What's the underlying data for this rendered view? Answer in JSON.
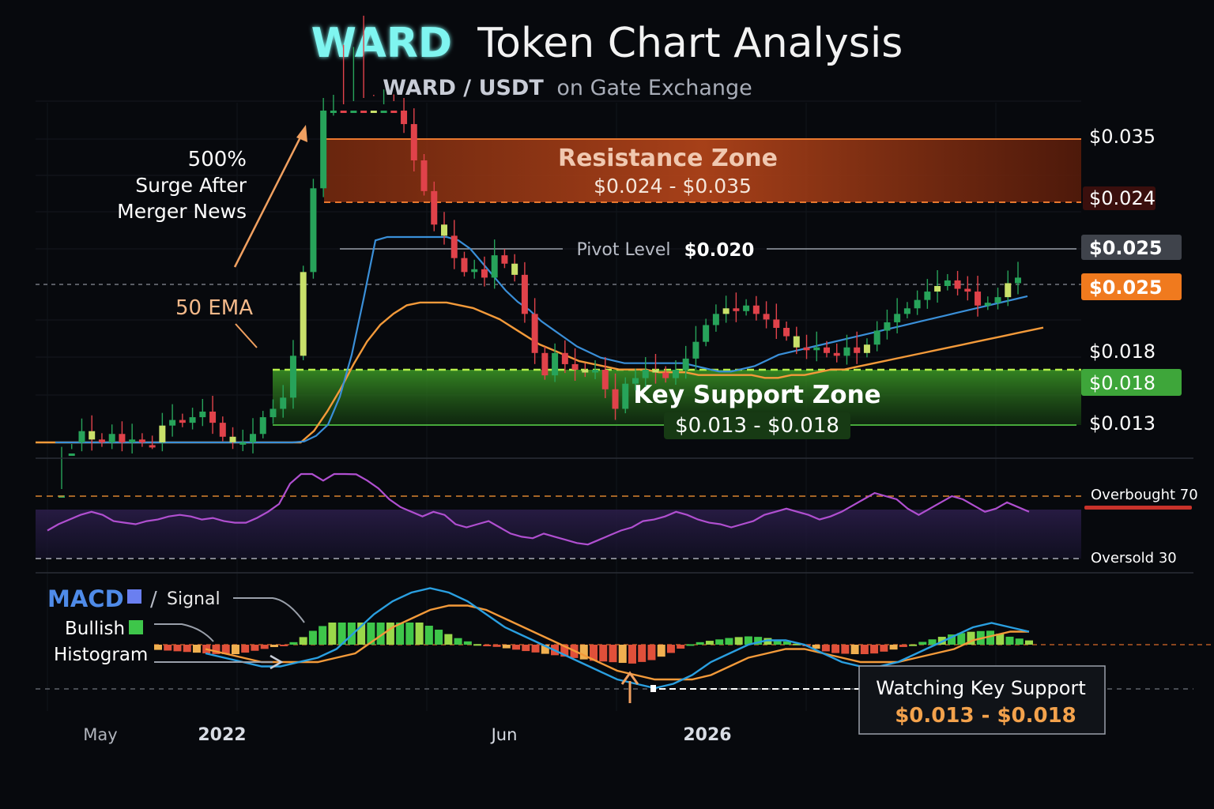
{
  "title": {
    "highlight": "WARD",
    "rest": "Token Chart Analysis"
  },
  "subtitle": {
    "pair": "WARD / USDT",
    "rest": "on Gate Exchange"
  },
  "colors": {
    "background": "#07090d",
    "bullish": "#27a35a",
    "bearish": "#e0424a",
    "ema_fast": "#3a8fd8",
    "ema_slow": "#f39a3a",
    "rsi": "#b04fd0",
    "macd": "#2a9fe0",
    "signal": "#f39a3a",
    "resistance": "#d9531e",
    "support": "#2f8f2a"
  },
  "resistance_zone": {
    "label": "Resistance Zone",
    "range": "$0.024 - $0.035"
  },
  "support_zone": {
    "label": "Key Support Zone",
    "range": "$0.013 - $0.018"
  },
  "pivot": {
    "label": "Pivot Level",
    "value": "$0.020"
  },
  "annotations": {
    "surge_line1": "500%",
    "surge_line2": "Surge After",
    "surge_line3": "Merger News",
    "ema50": "50 EMA"
  },
  "price_labels": {
    "p035": "$0.035",
    "p024": "$0.024",
    "p025a": "$0.025",
    "p025b": "$0.025",
    "p018a": "$0.018",
    "p018b": "$0.018",
    "p013": "$0.013"
  },
  "rsi_labels": {
    "overbought": "Overbought 70",
    "oversold": "Oversold 30"
  },
  "macd_legend": {
    "macd": "MACD",
    "slash": "/",
    "signal": "Signal",
    "bullish": "Bullish",
    "histogram": "Histogram"
  },
  "x_axis": {
    "labels": [
      "May",
      "2022",
      "Jun",
      "2026"
    ]
  },
  "callout": {
    "title": "Watching Key Support",
    "range": "$0.013 - $0.018"
  },
  "chart_data": {
    "type": "line",
    "price_axis_ticks": [
      "$0.035",
      "$0.024",
      "$0.025",
      "$0.025",
      "$0.018",
      "$0.018",
      "$0.013"
    ],
    "zones": [
      {
        "name": "Resistance Zone",
        "from": 0.024,
        "to": 0.035
      },
      {
        "name": "Key Support Zone",
        "from": 0.013,
        "to": 0.018
      }
    ],
    "levels": [
      {
        "name": "Pivot Level",
        "value": 0.02
      }
    ],
    "rsi_levels": {
      "overbought": 70,
      "oversold": 30
    },
    "price_series": [
      0.0135,
      0.015,
      0.0158,
      0.0155,
      0.015,
      0.0157,
      0.0152,
      0.0155,
      0.0153,
      0.015,
      0.016,
      0.0162,
      0.0161,
      0.0163,
      0.0165,
      0.0161,
      0.0156,
      0.0154,
      0.0154,
      0.0157,
      0.0163,
      0.0166,
      0.017,
      0.0185,
      0.0215,
      0.0245,
      0.0275,
      0.0302,
      0.0298,
      0.0325,
      0.031,
      0.0282,
      0.03,
      0.0281,
      0.0268,
      0.0255,
      0.0244,
      0.0232,
      0.0228,
      0.022,
      0.0215,
      0.0216,
      0.0213,
      0.0221,
      0.0218,
      0.0214,
      0.02,
      0.0186,
      0.0178,
      0.0186,
      0.0182,
      0.018,
      0.0179,
      0.018,
      0.0173,
      0.0166,
      0.0175,
      0.0177,
      0.018,
      0.0179,
      0.0177,
      0.018,
      0.0184,
      0.019,
      0.0196,
      0.02,
      0.0202,
      0.0201,
      0.0203,
      0.02,
      0.0198,
      0.0195,
      0.0192,
      0.0188,
      0.0187,
      0.0188,
      0.0186,
      0.0185,
      0.0188,
      0.0186,
      0.0189,
      0.0194,
      0.0197,
      0.02,
      0.0202,
      0.0205,
      0.0208,
      0.021,
      0.0212,
      0.0209,
      0.0208,
      0.0203,
      0.0204,
      0.0206,
      0.0211,
      0.0213
    ],
    "ema_fast": [
      0.014,
      0.0143,
      0.0146,
      0.0148,
      0.0149,
      0.0151,
      0.0152,
      0.0153,
      0.0153,
      0.0153,
      0.0155,
      0.0156,
      0.0157,
      0.0158,
      0.0159,
      0.0159,
      0.0159,
      0.0158,
      0.0158,
      0.0158,
      0.0159,
      0.016,
      0.0162,
      0.0166,
      0.0176,
      0.0191,
      0.0211,
      0.0232,
      0.0247,
      0.025,
      0.0245,
      0.024,
      0.0236,
      0.0234,
      0.0232,
      0.0229,
      0.0224,
      0.0219,
      0.0214,
      0.021,
      0.0207,
      0.0203,
      0.02,
      0.0197,
      0.0194,
      0.0192,
      0.019,
      0.0189,
      0.0188,
      0.0188,
      0.0188,
      0.0188,
      0.0188,
      0.0188,
      0.0187,
      0.0186,
      0.0185,
      0.0185,
      0.0186,
      0.0187,
      0.0189,
      0.0191,
      0.0192,
      0.0193,
      0.0194,
      0.0195,
      0.0196,
      0.0197,
      0.0198,
      0.0199,
      0.02,
      0.0201,
      0.0202,
      0.0203,
      0.0204,
      0.0205,
      0.0206,
      0.0207,
      0.0208,
      0.0209,
      0.021,
      0.0211,
      0.0212
    ],
    "ema_slow": [
      0.013,
      0.0132,
      0.0134,
      0.0136,
      0.0138,
      0.014,
      0.0142,
      0.0143,
      0.0145,
      0.0147,
      0.0148,
      0.015,
      0.0151,
      0.0152,
      0.0153,
      0.0155,
      0.0156,
      0.0157,
      0.0158,
      0.016,
      0.0163,
      0.0168,
      0.0175,
      0.0183,
      0.0192,
      0.02,
      0.0206,
      0.021,
      0.0213,
      0.0214,
      0.0214,
      0.0214,
      0.0213,
      0.0212,
      0.021,
      0.0208,
      0.0205,
      0.0202,
      0.0199,
      0.0197,
      0.0195,
      0.0193,
      0.0192,
      0.0191,
      0.019,
      0.019,
      0.019,
      0.0189,
      0.0189,
      0.0189,
      0.0188,
      0.0188,
      0.0188,
      0.0188,
      0.0188,
      0.0187,
      0.0187,
      0.0188,
      0.0188,
      0.0189,
      0.019,
      0.019,
      0.0191,
      0.0192,
      0.0193,
      0.0194,
      0.0195,
      0.0196,
      0.0197,
      0.0198,
      0.0199,
      0.02,
      0.0201,
      0.0202,
      0.0203,
      0.0204,
      0.0205
    ],
    "rsi_series": [
      48,
      52,
      55,
      58,
      60,
      58,
      54,
      53,
      52,
      54,
      55,
      57,
      58,
      57,
      55,
      56,
      54,
      53,
      53,
      56,
      60,
      65,
      78,
      85,
      92,
      80,
      88,
      93,
      84,
      80,
      75,
      68,
      63,
      60,
      57,
      60,
      58,
      52,
      50,
      52,
      54,
      50,
      46,
      44,
      43,
      46,
      44,
      42,
      40,
      39,
      42,
      45,
      48,
      50,
      54,
      55,
      57,
      60,
      58,
      55,
      53,
      52,
      50,
      52,
      54,
      58,
      60,
      62,
      60,
      58,
      55,
      57,
      60,
      64,
      68,
      72,
      70,
      68,
      62,
      58,
      62,
      66,
      70,
      68,
      64,
      60,
      62,
      66,
      63,
      60
    ],
    "macd_series": [
      -0.0002,
      -0.0003,
      -0.0004,
      -0.0005,
      -0.0005,
      -0.0004,
      -0.0003,
      -0.0001,
      0.0003,
      0.0007,
      0.001,
      0.0012,
      0.0013,
      0.0012,
      0.001,
      0.0007,
      0.0004,
      0.0002,
      0.0,
      -0.0002,
      -0.0004,
      -0.0006,
      -0.0008,
      -0.0009,
      -0.001,
      -0.0009,
      -0.0007,
      -0.0004,
      -0.0002,
      0.0,
      0.0001,
      0.0001,
      0.0,
      -0.0002,
      -0.0004,
      -0.0005,
      -0.0005,
      -0.0004,
      -0.0002,
      0.0,
      0.0002,
      0.0004,
      0.0005,
      0.0004,
      0.0003
    ],
    "signal_series": [
      -0.0001,
      -0.0002,
      -0.0003,
      -0.0004,
      -0.0004,
      -0.0004,
      -0.0004,
      -0.0003,
      -0.0002,
      0.0001,
      0.0004,
      0.0006,
      0.0008,
      0.0009,
      0.0009,
      0.0008,
      0.0006,
      0.0004,
      0.0002,
      0.0,
      -0.0002,
      -0.0004,
      -0.0006,
      -0.0007,
      -0.0008,
      -0.0008,
      -0.0008,
      -0.0007,
      -0.0005,
      -0.0003,
      -0.0002,
      -0.0001,
      -0.0001,
      -0.0002,
      -0.0003,
      -0.0004,
      -0.0004,
      -0.0004,
      -0.0003,
      -0.0002,
      -0.0001,
      0.0001,
      0.0002,
      0.0003,
      0.0003
    ]
  }
}
